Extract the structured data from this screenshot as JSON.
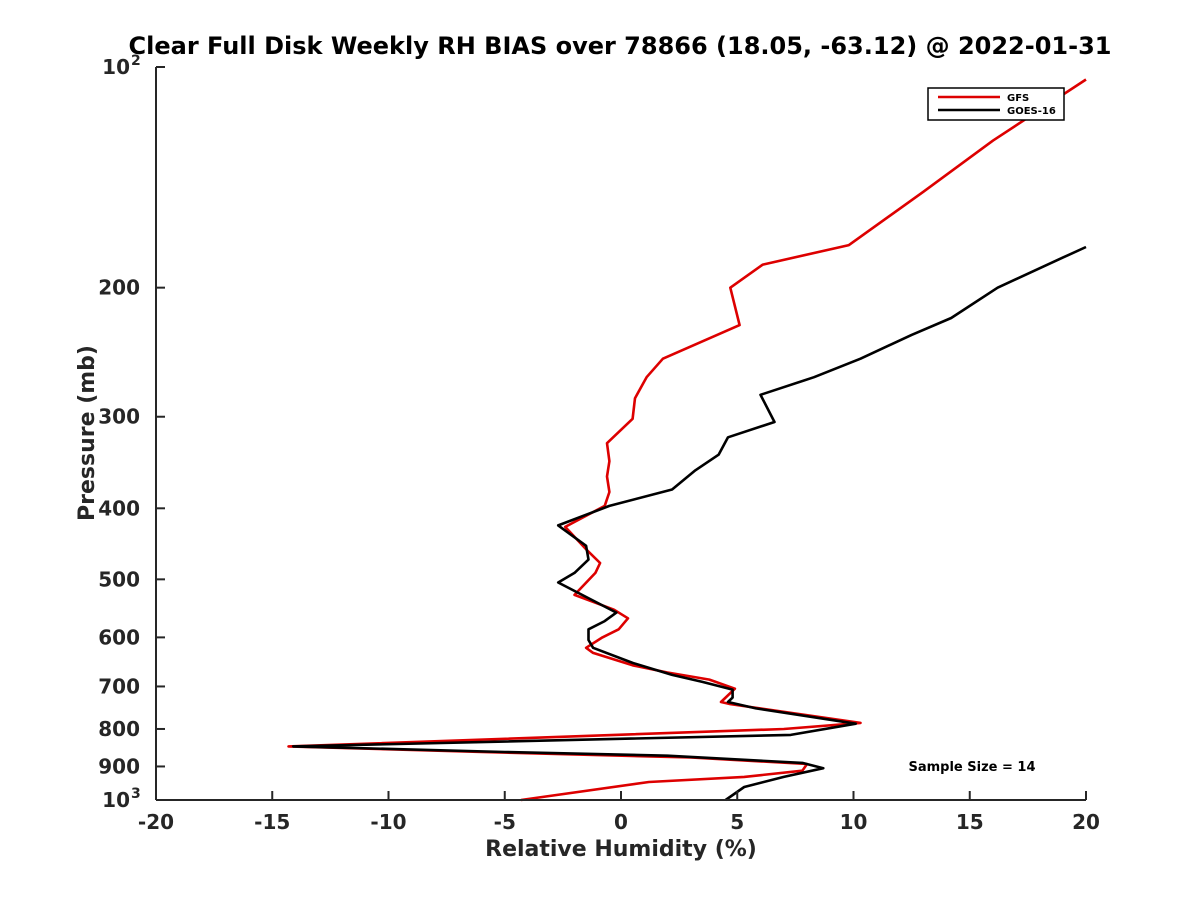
{
  "chart_data": {
    "type": "line",
    "title": "Clear Full Disk Weekly RH BIAS over 78866 (18.05, -63.12) @ 2022-01-31",
    "xlabel": "Relative Humidity (%)",
    "ylabel": "Pressure (mb)",
    "xlim": [
      -20,
      20
    ],
    "ylim": [
      100,
      1000
    ],
    "y_scale": "log",
    "y_reversed": true,
    "grid": false,
    "legend_position": "top-right",
    "x_ticks": [
      {
        "value": -20,
        "label": "-20"
      },
      {
        "value": -15,
        "label": "-15"
      },
      {
        "value": -10,
        "label": "-10"
      },
      {
        "value": -5,
        "label": "-5"
      },
      {
        "value": 0,
        "label": "0"
      },
      {
        "value": 5,
        "label": "5"
      },
      {
        "value": 10,
        "label": "10"
      },
      {
        "value": 15,
        "label": "15"
      },
      {
        "value": 20,
        "label": "20"
      }
    ],
    "y_ticks": [
      {
        "value": 100,
        "label": "10",
        "sup": "2"
      },
      {
        "value": 200,
        "label": "200",
        "sup": ""
      },
      {
        "value": 300,
        "label": "300",
        "sup": ""
      },
      {
        "value": 400,
        "label": "400",
        "sup": ""
      },
      {
        "value": 500,
        "label": "500",
        "sup": ""
      },
      {
        "value": 600,
        "label": "600",
        "sup": ""
      },
      {
        "value": 700,
        "label": "700",
        "sup": ""
      },
      {
        "value": 800,
        "label": "800",
        "sup": ""
      },
      {
        "value": 900,
        "label": "900",
        "sup": ""
      },
      {
        "value": 1000,
        "label": "10",
        "sup": "3"
      }
    ],
    "series": [
      {
        "name": "GFS",
        "color": "#dd0000",
        "points": [
          [
            20,
            104
          ],
          [
            16,
            126
          ],
          [
            13,
            148
          ],
          [
            9.8,
            175
          ],
          [
            6.1,
            186
          ],
          [
            4.7,
            200
          ],
          [
            5.1,
            225
          ],
          [
            1.8,
            250
          ],
          [
            1.1,
            265
          ],
          [
            0.6,
            283
          ],
          [
            0.5,
            302
          ],
          [
            -0.6,
            326
          ],
          [
            -0.5,
            345
          ],
          [
            -0.6,
            362
          ],
          [
            -0.5,
            380
          ],
          [
            -0.7,
            397
          ],
          [
            -2.4,
            424
          ],
          [
            -1.5,
            455
          ],
          [
            -0.9,
            475
          ],
          [
            -1.1,
            490
          ],
          [
            -2.0,
            525
          ],
          [
            -0.3,
            550
          ],
          [
            0.3,
            565
          ],
          [
            -0.1,
            585
          ],
          [
            -0.8,
            600
          ],
          [
            -1.5,
            620
          ],
          [
            -1.2,
            630
          ],
          [
            0.5,
            655
          ],
          [
            2.0,
            670
          ],
          [
            3.8,
            685
          ],
          [
            4.9,
            705
          ],
          [
            4.3,
            735
          ],
          [
            4.7,
            740
          ],
          [
            10.3,
            785
          ],
          [
            7.0,
            800
          ],
          [
            -14.3,
            845
          ],
          [
            -6.0,
            860
          ],
          [
            3.0,
            875
          ],
          [
            8.0,
            893
          ],
          [
            7.8,
            912
          ],
          [
            5.3,
            930
          ],
          [
            1.2,
            945
          ],
          [
            -4.3,
            1000
          ]
        ]
      },
      {
        "name": "GOES-16",
        "color": "#000000",
        "points": [
          [
            20,
            176
          ],
          [
            19,
            182
          ],
          [
            16.2,
            200
          ],
          [
            14.2,
            220
          ],
          [
            12.5,
            232
          ],
          [
            10.3,
            250
          ],
          [
            8.3,
            265
          ],
          [
            6.0,
            280
          ],
          [
            6.6,
            305
          ],
          [
            4.6,
            320
          ],
          [
            4.2,
            338
          ],
          [
            3.2,
            355
          ],
          [
            2.2,
            377
          ],
          [
            -0.5,
            397
          ],
          [
            -2.7,
            422
          ],
          [
            -1.5,
            450
          ],
          [
            -1.4,
            470
          ],
          [
            -2.0,
            490
          ],
          [
            -2.7,
            505
          ],
          [
            -0.2,
            555
          ],
          [
            -0.7,
            570
          ],
          [
            -1.4,
            585
          ],
          [
            -1.4,
            605
          ],
          [
            -1.2,
            620
          ],
          [
            0.5,
            650
          ],
          [
            2.2,
            675
          ],
          [
            3.5,
            690
          ],
          [
            4.8,
            707
          ],
          [
            4.8,
            725
          ],
          [
            4.6,
            735
          ],
          [
            5.8,
            750
          ],
          [
            10.1,
            787
          ],
          [
            7.3,
            815
          ],
          [
            -14.1,
            845
          ],
          [
            -5.0,
            860
          ],
          [
            2.0,
            870
          ],
          [
            7.8,
            890
          ],
          [
            8.7,
            905
          ],
          [
            7.0,
            930
          ],
          [
            5.3,
            960
          ],
          [
            4.5,
            1000
          ]
        ]
      }
    ],
    "legend": [
      {
        "label": "GFS",
        "color": "#dd0000"
      },
      {
        "label": "GOES-16",
        "color": "#000000"
      }
    ],
    "annotation": "Sample Size = 14"
  }
}
